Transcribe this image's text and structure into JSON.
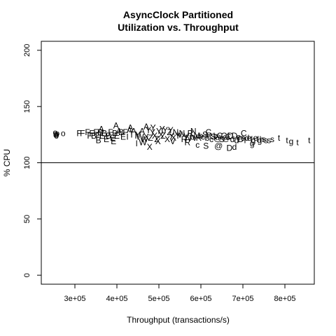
{
  "chart_data": {
    "type": "scatter",
    "title": "AsyncClock Partitioned",
    "subtitle": "Utilization vs. Throughput",
    "xlabel": "Throughput (transactions/s)",
    "ylabel": "% CPU",
    "xlim": [
      220000,
      870000
    ],
    "ylim": [
      -8,
      208
    ],
    "x_ticks": [
      300000,
      400000,
      500000,
      600000,
      700000,
      800000
    ],
    "x_tick_labels": [
      "3e+05",
      "4e+05",
      "5e+05",
      "6e+05",
      "7e+05",
      "8e+05"
    ],
    "y_ticks": [
      0,
      50,
      100,
      150,
      200
    ],
    "y_tick_labels": [
      "0",
      "50",
      "100",
      "150",
      "200"
    ],
    "reference_line": {
      "y": 100,
      "orientation": "horizontal"
    },
    "grid": false,
    "legend": "none",
    "points": [
      {
        "x": 255000,
        "y": 126,
        "label": "o"
      },
      {
        "x": 257000,
        "y": 125,
        "label": "o"
      },
      {
        "x": 253000,
        "y": 127,
        "label": "o"
      },
      {
        "x": 256000,
        "y": 124,
        "label": "o"
      },
      {
        "x": 258000,
        "y": 126,
        "label": "o"
      },
      {
        "x": 254000,
        "y": 125,
        "label": "o"
      },
      {
        "x": 272000,
        "y": 126,
        "label": "o"
      },
      {
        "x": 310000,
        "y": 126,
        "label": "F"
      },
      {
        "x": 318000,
        "y": 126,
        "label": "F"
      },
      {
        "x": 330000,
        "y": 127,
        "label": "F"
      },
      {
        "x": 335000,
        "y": 124,
        "label": "F"
      },
      {
        "x": 340000,
        "y": 126,
        "label": "F"
      },
      {
        "x": 345000,
        "y": 124,
        "label": "B"
      },
      {
        "x": 350000,
        "y": 127,
        "label": "F"
      },
      {
        "x": 355000,
        "y": 124,
        "label": "F"
      },
      {
        "x": 360000,
        "y": 127,
        "label": "B"
      },
      {
        "x": 365000,
        "y": 124,
        "label": "E"
      },
      {
        "x": 370000,
        "y": 126,
        "label": "B"
      },
      {
        "x": 375000,
        "y": 121,
        "label": "E"
      },
      {
        "x": 380000,
        "y": 124,
        "label": "B"
      },
      {
        "x": 385000,
        "y": 127,
        "label": "F"
      },
      {
        "x": 390000,
        "y": 122,
        "label": "E"
      },
      {
        "x": 395000,
        "y": 126,
        "label": "B"
      },
      {
        "x": 400000,
        "y": 124,
        "label": "E"
      },
      {
        "x": 405000,
        "y": 128,
        "label": "A"
      },
      {
        "x": 410000,
        "y": 127,
        "label": "B"
      },
      {
        "x": 415000,
        "y": 123,
        "label": "E"
      },
      {
        "x": 420000,
        "y": 127,
        "label": "F"
      },
      {
        "x": 425000,
        "y": 123,
        "label": "I"
      },
      {
        "x": 430000,
        "y": 129,
        "label": "A"
      },
      {
        "x": 435000,
        "y": 125,
        "label": "T"
      },
      {
        "x": 440000,
        "y": 128,
        "label": "A"
      },
      {
        "x": 445000,
        "y": 124,
        "label": "l"
      },
      {
        "x": 450000,
        "y": 125,
        "label": "Y"
      },
      {
        "x": 455000,
        "y": 123,
        "label": "W"
      },
      {
        "x": 460000,
        "y": 128,
        "label": "A"
      },
      {
        "x": 465000,
        "y": 121,
        "label": "W"
      },
      {
        "x": 470000,
        "y": 123,
        "label": "X"
      },
      {
        "x": 475000,
        "y": 129,
        "label": "Y"
      },
      {
        "x": 480000,
        "y": 122,
        "label": "Z"
      },
      {
        "x": 485000,
        "y": 127,
        "label": "Y"
      },
      {
        "x": 490000,
        "y": 124,
        "label": "X"
      },
      {
        "x": 495000,
        "y": 121,
        "label": "Z"
      },
      {
        "x": 500000,
        "y": 128,
        "label": "Y"
      },
      {
        "x": 505000,
        "y": 125,
        "label": "X"
      },
      {
        "x": 510000,
        "y": 124,
        "label": "Z"
      },
      {
        "x": 515000,
        "y": 129,
        "label": "Y"
      },
      {
        "x": 520000,
        "y": 121,
        "label": "X"
      },
      {
        "x": 525000,
        "y": 127,
        "label": "Z"
      },
      {
        "x": 530000,
        "y": 124,
        "label": "Y"
      },
      {
        "x": 535000,
        "y": 122,
        "label": "X"
      },
      {
        "x": 540000,
        "y": 127,
        "label": "N"
      },
      {
        "x": 545000,
        "y": 124,
        "label": "Y"
      },
      {
        "x": 550000,
        "y": 125,
        "label": "V"
      },
      {
        "x": 555000,
        "y": 126,
        "label": "N"
      },
      {
        "x": 560000,
        "y": 121,
        "label": "R"
      },
      {
        "x": 565000,
        "y": 124,
        "label": "V"
      },
      {
        "x": 570000,
        "y": 122,
        "label": "N"
      },
      {
        "x": 575000,
        "y": 126,
        "label": "R"
      },
      {
        "x": 580000,
        "y": 123,
        "label": "b"
      },
      {
        "x": 585000,
        "y": 122,
        "label": "V"
      },
      {
        "x": 590000,
        "y": 124,
        "label": "N"
      },
      {
        "x": 595000,
        "y": 122,
        "label": "R"
      },
      {
        "x": 600000,
        "y": 124,
        "label": "b"
      },
      {
        "x": 605000,
        "y": 123,
        "label": "c"
      },
      {
        "x": 610000,
        "y": 125,
        "label": "S"
      },
      {
        "x": 615000,
        "y": 122,
        "label": "b"
      },
      {
        "x": 620000,
        "y": 124,
        "label": "R"
      },
      {
        "x": 625000,
        "y": 121,
        "label": "c"
      },
      {
        "x": 630000,
        "y": 123,
        "label": "S"
      },
      {
        "x": 635000,
        "y": 124,
        "label": "b"
      },
      {
        "x": 640000,
        "y": 122,
        "label": "@"
      },
      {
        "x": 645000,
        "y": 124,
        "label": "C"
      },
      {
        "x": 650000,
        "y": 121,
        "label": "S"
      },
      {
        "x": 655000,
        "y": 124,
        "label": "C"
      },
      {
        "x": 660000,
        "y": 122,
        "label": "@"
      },
      {
        "x": 665000,
        "y": 123,
        "label": "C"
      },
      {
        "x": 670000,
        "y": 124,
        "label": "D"
      },
      {
        "x": 675000,
        "y": 121,
        "label": "d"
      },
      {
        "x": 680000,
        "y": 124,
        "label": "D"
      },
      {
        "x": 685000,
        "y": 120,
        "label": "d"
      },
      {
        "x": 690000,
        "y": 123,
        "label": "e"
      },
      {
        "x": 695000,
        "y": 121,
        "label": "D"
      },
      {
        "x": 700000,
        "y": 122,
        "label": "e"
      },
      {
        "x": 705000,
        "y": 120,
        "label": "f"
      },
      {
        "x": 710000,
        "y": 122,
        "label": "d"
      },
      {
        "x": 715000,
        "y": 122,
        "label": "e"
      },
      {
        "x": 720000,
        "y": 121,
        "label": "f"
      },
      {
        "x": 725000,
        "y": 120,
        "label": "g"
      },
      {
        "x": 730000,
        "y": 122,
        "label": "e"
      },
      {
        "x": 735000,
        "y": 121,
        "label": "f"
      },
      {
        "x": 740000,
        "y": 120,
        "label": "g"
      },
      {
        "x": 745000,
        "y": 121,
        "label": "h"
      },
      {
        "x": 750000,
        "y": 121,
        "label": "s"
      },
      {
        "x": 755000,
        "y": 120,
        "label": "s"
      },
      {
        "x": 762000,
        "y": 120,
        "label": "s"
      },
      {
        "x": 770000,
        "y": 121,
        "label": "s"
      },
      {
        "x": 786000,
        "y": 122,
        "label": "t"
      },
      {
        "x": 805000,
        "y": 120,
        "label": "t"
      },
      {
        "x": 815000,
        "y": 119,
        "label": "g"
      },
      {
        "x": 830000,
        "y": 118,
        "label": "t"
      },
      {
        "x": 858000,
        "y": 120,
        "label": "t"
      },
      {
        "x": 363000,
        "y": 130,
        "label": "A"
      },
      {
        "x": 398000,
        "y": 133,
        "label": "A"
      },
      {
        "x": 432000,
        "y": 131,
        "label": "A"
      },
      {
        "x": 470000,
        "y": 132,
        "label": "A"
      },
      {
        "x": 486000,
        "y": 131,
        "label": "Y"
      },
      {
        "x": 478000,
        "y": 114,
        "label": "X"
      },
      {
        "x": 592000,
        "y": 116,
        "label": "c"
      },
      {
        "x": 612000,
        "y": 115,
        "label": "S"
      },
      {
        "x": 642000,
        "y": 115,
        "label": "@"
      },
      {
        "x": 668000,
        "y": 113,
        "label": "D"
      },
      {
        "x": 680000,
        "y": 114,
        "label": "d"
      },
      {
        "x": 722000,
        "y": 117,
        "label": "g"
      },
      {
        "x": 356000,
        "y": 120,
        "label": "B"
      },
      {
        "x": 392000,
        "y": 119,
        "label": "E"
      },
      {
        "x": 447000,
        "y": 117,
        "label": "l"
      },
      {
        "x": 462000,
        "y": 118,
        "label": "W"
      },
      {
        "x": 498000,
        "y": 119,
        "label": "X"
      },
      {
        "x": 533000,
        "y": 119,
        "label": "V"
      },
      {
        "x": 568000,
        "y": 118,
        "label": "R"
      },
      {
        "x": 702000,
        "y": 126,
        "label": "C"
      },
      {
        "x": 618000,
        "y": 127,
        "label": "C"
      },
      {
        "x": 582000,
        "y": 128,
        "label": "N"
      },
      {
        "x": 528000,
        "y": 129,
        "label": "Y"
      },
      {
        "x": 508000,
        "y": 130,
        "label": "Y"
      }
    ]
  }
}
